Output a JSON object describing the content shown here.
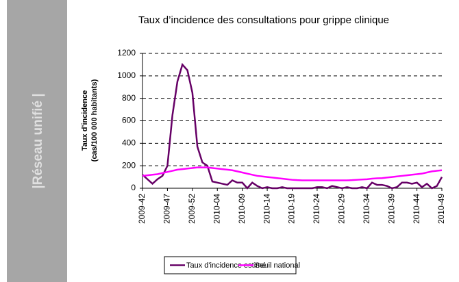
{
  "banner": "|Réseau unifié |",
  "chart_data": {
    "type": "line",
    "title": "Taux d’incidence des consultations pour grippe clinique",
    "ylabel": [
      "Taux d’incidence",
      "(cas/100 000 habitants)"
    ],
    "categories": [
      "2009-42",
      null,
      null,
      null,
      null,
      "2009-47",
      null,
      null,
      null,
      null,
      "2009-52",
      null,
      null,
      null,
      null,
      "2010-04",
      null,
      null,
      null,
      null,
      "2010-09",
      null,
      null,
      null,
      null,
      "2010-14",
      null,
      null,
      null,
      null,
      "2010-19",
      null,
      null,
      null,
      null,
      "2010-24",
      null,
      null,
      null,
      null,
      "2010-29",
      null,
      null,
      null,
      null,
      "2010-34",
      null,
      null,
      null,
      null,
      "2010-39",
      null,
      null,
      null,
      null,
      "2010-44",
      null,
      null,
      null,
      null,
      "2010-49"
    ],
    "series": [
      {
        "name": "Taux d'incidence estimé",
        "color": "#660066",
        "values": [
          120,
          80,
          40,
          80,
          110,
          200,
          650,
          950,
          1100,
          1050,
          850,
          370,
          230,
          200,
          60,
          50,
          40,
          30,
          70,
          50,
          50,
          0,
          50,
          20,
          0,
          10,
          0,
          0,
          10,
          0,
          0,
          0,
          0,
          0,
          0,
          10,
          10,
          0,
          20,
          10,
          0,
          10,
          0,
          0,
          10,
          0,
          50,
          30,
          30,
          20,
          0,
          10,
          50,
          50,
          40,
          50,
          10,
          40,
          0,
          20,
          100
        ]
      },
      {
        "name": "Seuil national",
        "color": "#ff00ff",
        "values": [
          110,
          115,
          120,
          125,
          135,
          145,
          155,
          165,
          170,
          175,
          180,
          185,
          185,
          185,
          180,
          175,
          170,
          165,
          160,
          150,
          140,
          130,
          120,
          110,
          105,
          100,
          95,
          90,
          85,
          80,
          75,
          72,
          70,
          70,
          70,
          70,
          70,
          70,
          70,
          70,
          70,
          70,
          72,
          75,
          78,
          80,
          85,
          88,
          90,
          95,
          100,
          105,
          110,
          115,
          120,
          125,
          130,
          140,
          150,
          155,
          160
        ]
      }
    ],
    "ylim": [
      0,
      1200
    ],
    "yticks": [
      0,
      200,
      400,
      600,
      800,
      1000,
      1200
    ],
    "grid": true
  }
}
